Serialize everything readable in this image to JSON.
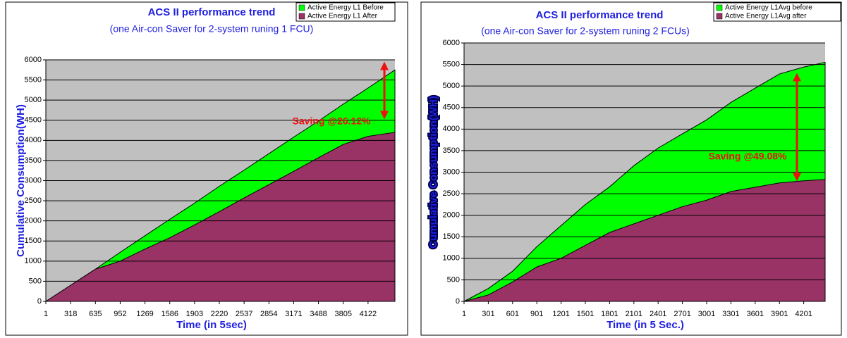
{
  "chart_data": [
    {
      "type": "area",
      "title": "ACS II performance trend",
      "subtitle": "(one Air-con Saver for 2-system runing 1 FCU)",
      "x_label": "Time (in 5sec)",
      "y_label": "Cumulative Consumption(WH)",
      "x": [
        1,
        318,
        635,
        952,
        1269,
        1586,
        1903,
        2220,
        2537,
        2854,
        3171,
        3488,
        3805,
        4122,
        4466
      ],
      "series": [
        {
          "name": "Active Energy L1 Before",
          "color": "#00ff00",
          "values": [
            0,
            400,
            800,
            1220,
            1630,
            2040,
            2440,
            2860,
            3260,
            3670,
            4080,
            4480,
            4900,
            5300,
            5750
          ]
        },
        {
          "name": "Active Energy L1 After",
          "color": "#993366",
          "values": [
            0,
            400,
            800,
            1000,
            1300,
            1580,
            1900,
            2230,
            2570,
            2900,
            3230,
            3570,
            3900,
            4100,
            4200
          ]
        }
      ],
      "xlim": [
        1,
        4466
      ],
      "xticks": [
        1,
        318,
        635,
        952,
        1269,
        1586,
        1903,
        2220,
        2537,
        2854,
        3171,
        3488,
        3805,
        4122
      ],
      "ylim": [
        0,
        6000
      ],
      "yticks": [
        0,
        500,
        1000,
        1500,
        2000,
        2500,
        3000,
        3500,
        4000,
        4500,
        5000,
        5500,
        6000
      ],
      "grid": true,
      "legend": "upper right",
      "annotation": "Saving @26.12%"
    },
    {
      "type": "area",
      "title": "ACS II performance trend",
      "subtitle": "(one Air-con Saver for 2-system runing 2 FCUs)",
      "x_label": "Time (in 5 Sec.)",
      "y_label": "Cumulative Consumption(WH)",
      "x": [
        1,
        301,
        601,
        901,
        1201,
        1501,
        1801,
        2101,
        2401,
        2701,
        3001,
        3301,
        3601,
        3901,
        4201,
        4466
      ],
      "series": [
        {
          "name": "Active Energy L1Avg before",
          "color": "#00ff00",
          "values": [
            0,
            300,
            700,
            1270,
            1760,
            2250,
            2660,
            3150,
            3560,
            3890,
            4215,
            4620,
            4950,
            5280,
            5440,
            5550
          ]
        },
        {
          "name": "Active Energy L1Avg after",
          "color": "#993366",
          "values": [
            0,
            150,
            450,
            800,
            1000,
            1300,
            1600,
            1800,
            2000,
            2200,
            2350,
            2550,
            2650,
            2750,
            2800,
            2830
          ]
        }
      ],
      "xlim": [
        1,
        4466
      ],
      "xticks": [
        1,
        301,
        601,
        901,
        1201,
        1501,
        1801,
        2101,
        2401,
        2701,
        3001,
        3301,
        3601,
        3901,
        4201
      ],
      "ylim": [
        0,
        6000
      ],
      "yticks": [
        0,
        500,
        1000,
        1500,
        2000,
        2500,
        3000,
        3500,
        4000,
        4500,
        5000,
        5500,
        6000
      ],
      "grid": true,
      "legend": "upper right",
      "annotation": "Saving @49.08%"
    }
  ]
}
